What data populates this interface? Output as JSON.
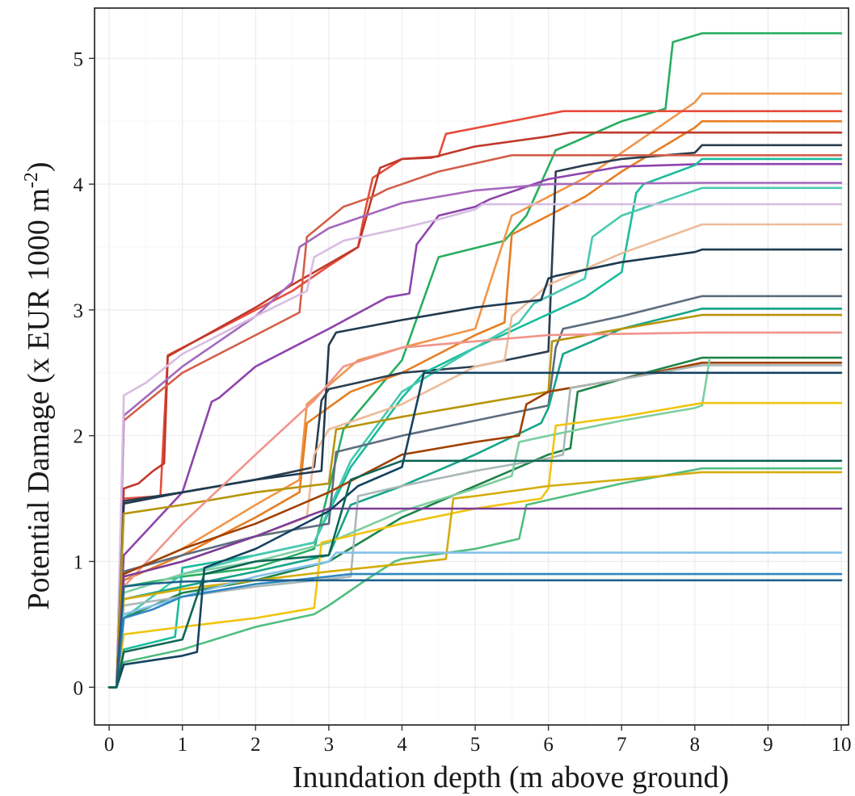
{
  "chart_data": {
    "type": "line",
    "xlabel": "Inundation depth (m above ground)",
    "ylabel": "Potential Damage (x EUR 1000  m",
    "ylabel_superscript": "-2",
    "ylabel_close": ")",
    "xlim": [
      -0.2,
      10.1
    ],
    "ylim": [
      -0.3,
      5.4
    ],
    "x_ticks": [
      0,
      1,
      2,
      3,
      4,
      5,
      6,
      7,
      8,
      9,
      10
    ],
    "x_tick_labels": [
      "0",
      "1",
      "2",
      "3",
      "4",
      "5",
      "6",
      "7",
      "8",
      "9",
      "10"
    ],
    "y_ticks": [
      0,
      1,
      2,
      3,
      4,
      5
    ],
    "y_tick_labels": [
      "0",
      "1",
      "2",
      "3",
      "4",
      "5"
    ],
    "grid": true,
    "legend": "none",
    "series": [
      {
        "color": "#27ae60",
        "x": [
          0,
          0.1,
          0.2,
          0.5,
          1.0,
          2.0,
          2.8,
          3.2,
          4.0,
          4.5,
          5.4,
          5.7,
          6.1,
          7.0,
          7.6,
          7.7,
          8.1,
          10
        ],
        "y": [
          0,
          0,
          0.8,
          0.83,
          0.88,
          0.95,
          1.1,
          2.05,
          2.6,
          3.42,
          3.55,
          3.75,
          4.27,
          4.5,
          4.6,
          5.13,
          5.2,
          5.2
        ]
      },
      {
        "color": "#f0954a",
        "x": [
          0,
          0.1,
          0.2,
          1.0,
          2.0,
          2.6,
          2.7,
          3.4,
          4.0,
          5.0,
          5.5,
          6.0,
          6.5,
          7.0,
          8.0,
          8.1,
          10
        ],
        "y": [
          0,
          0,
          0.9,
          1.1,
          1.45,
          1.65,
          2.25,
          2.6,
          2.7,
          2.85,
          3.75,
          3.9,
          4.05,
          4.25,
          4.65,
          4.72,
          4.72
        ]
      },
      {
        "color": "#e74c3c",
        "x": [
          0,
          0.1,
          0.2,
          0.7,
          0.8,
          1.5,
          2.5,
          3.0,
          3.4,
          3.5,
          3.6,
          4.0,
          4.5,
          4.6,
          6.2,
          8.1,
          10
        ],
        "y": [
          0,
          0,
          1.5,
          1.52,
          2.64,
          2.85,
          3.15,
          3.35,
          3.5,
          3.8,
          4.05,
          4.2,
          4.22,
          4.4,
          4.58,
          4.58,
          4.58
        ]
      },
      {
        "color": "#e67e22",
        "x": [
          0,
          0.1,
          0.2,
          1.0,
          2.0,
          2.6,
          2.7,
          3.3,
          4.0,
          5.0,
          5.4,
          5.5,
          6.0,
          6.5,
          7.0,
          8.0,
          8.1,
          10
        ],
        "y": [
          0,
          0,
          0.85,
          1.05,
          1.35,
          1.55,
          2.1,
          2.35,
          2.5,
          2.8,
          2.9,
          3.6,
          3.75,
          3.9,
          4.1,
          4.45,
          4.5,
          4.5
        ]
      },
      {
        "color": "#c0392b",
        "x": [
          0,
          0.1,
          0.2,
          0.4,
          0.6,
          0.75,
          0.8,
          2.0,
          2.5,
          3.4,
          3.7,
          4.0,
          4.4,
          5.0,
          6.0,
          6.3,
          8.1,
          10
        ],
        "y": [
          0,
          0,
          1.58,
          1.62,
          1.72,
          1.78,
          2.63,
          3.02,
          3.2,
          3.5,
          4.13,
          4.2,
          4.21,
          4.3,
          4.38,
          4.41,
          4.41,
          4.41
        ]
      },
      {
        "color": "#2c3e50",
        "x": [
          0,
          0.1,
          0.2,
          1.0,
          2.0,
          2.8,
          2.9,
          3.0,
          4.0,
          5.0,
          6.0,
          6.1,
          6.5,
          7.0,
          8.0,
          8.1,
          10
        ],
        "y": [
          0,
          0,
          1.48,
          1.55,
          1.65,
          1.75,
          2.28,
          2.37,
          2.5,
          2.55,
          2.67,
          4.1,
          4.15,
          4.2,
          4.25,
          4.31,
          4.31
        ]
      },
      {
        "color": "#d35f4a",
        "x": [
          0,
          0.1,
          0.2,
          1.0,
          2.0,
          2.6,
          2.7,
          3.2,
          3.6,
          3.8,
          4.5,
          5.5,
          8.1,
          10
        ],
        "y": [
          0,
          0,
          2.12,
          2.5,
          2.8,
          2.98,
          3.58,
          3.82,
          3.9,
          3.96,
          4.1,
          4.23,
          4.23,
          4.23
        ]
      },
      {
        "color": "#8e44ad",
        "x": [
          0,
          0.1,
          0.2,
          0.6,
          1.0,
          1.4,
          1.5,
          2.0,
          3.0,
          3.8,
          4.1,
          4.2,
          4.5,
          5.0,
          5.2,
          6.0,
          7.0,
          8.1,
          10
        ],
        "y": [
          0,
          0,
          1.05,
          1.3,
          1.55,
          2.27,
          2.3,
          2.55,
          2.85,
          3.1,
          3.13,
          3.52,
          3.75,
          3.82,
          3.88,
          4.04,
          4.14,
          4.16,
          4.16
        ]
      },
      {
        "color": "#1abc9c",
        "x": [
          0,
          0.1,
          0.2,
          0.9,
          1.0,
          2.0,
          2.8,
          3.3,
          4.0,
          4.3,
          5.0,
          6.5,
          7.0,
          7.2,
          7.3,
          8.0,
          8.1,
          10
        ],
        "y": [
          0,
          0,
          0.3,
          0.4,
          0.95,
          1.05,
          1.15,
          1.75,
          2.3,
          2.5,
          2.7,
          3.1,
          3.3,
          3.93,
          4.0,
          4.15,
          4.2,
          4.2
        ]
      },
      {
        "color": "#a569bd",
        "x": [
          0,
          0.1,
          0.2,
          1.0,
          2.0,
          2.5,
          2.6,
          3.0,
          4.0,
          5.0,
          6.0,
          8.1,
          10
        ],
        "y": [
          0,
          0,
          2.16,
          2.55,
          2.95,
          3.22,
          3.5,
          3.65,
          3.85,
          3.95,
          4.0,
          4.01,
          4.01
        ]
      },
      {
        "color": "#48c9b0",
        "x": [
          0,
          0.1,
          0.2,
          1.0,
          2.0,
          2.8,
          3.3,
          4.0,
          5.0,
          5.6,
          5.8,
          6.5,
          6.6,
          7.0,
          8.1,
          10
        ],
        "y": [
          0,
          0,
          0.55,
          0.9,
          1.05,
          1.15,
          1.8,
          2.35,
          2.7,
          2.9,
          3.05,
          3.25,
          3.58,
          3.75,
          3.97,
          3.97
        ]
      },
      {
        "color": "#d7bde2",
        "x": [
          0,
          0.1,
          0.2,
          0.5,
          1.0,
          2.0,
          2.7,
          2.8,
          3.2,
          4.0,
          4.5,
          5.0,
          5.1,
          8.1,
          10
        ],
        "y": [
          0,
          0,
          2.32,
          2.42,
          2.65,
          2.95,
          3.15,
          3.42,
          3.55,
          3.65,
          3.72,
          3.8,
          3.84,
          3.84,
          3.84
        ]
      },
      {
        "color": "#edbb99",
        "x": [
          0,
          0.1,
          0.2,
          1.0,
          2.0,
          2.7,
          2.8,
          3.0,
          4.0,
          5.0,
          5.4,
          5.5,
          6.0,
          7.0,
          8.1,
          10
        ],
        "y": [
          0,
          0,
          0.88,
          1.0,
          1.2,
          1.35,
          1.85,
          2.05,
          2.25,
          2.55,
          2.6,
          2.95,
          3.2,
          3.45,
          3.68,
          3.68
        ]
      },
      {
        "color": "#1f3a4f",
        "x": [
          0,
          0.1,
          0.2,
          1.0,
          2.0,
          2.9,
          3.0,
          3.1,
          4.0,
          5.0,
          5.9,
          6.0,
          6.1,
          7.0,
          8.0,
          8.1,
          10
        ],
        "y": [
          0,
          0,
          1.46,
          1.55,
          1.65,
          1.72,
          2.72,
          2.82,
          2.92,
          3.02,
          3.08,
          3.25,
          3.27,
          3.38,
          3.46,
          3.48,
          3.48
        ]
      },
      {
        "color": "#5d6d7e",
        "x": [
          0,
          0.1,
          0.2,
          1.0,
          2.0,
          3.0,
          3.1,
          4.0,
          5.0,
          6.0,
          6.1,
          6.2,
          7.0,
          8.1,
          10
        ],
        "y": [
          0,
          0,
          0.92,
          1.05,
          1.2,
          1.3,
          1.87,
          2.0,
          2.12,
          2.24,
          2.7,
          2.85,
          2.95,
          3.11,
          3.11
        ]
      },
      {
        "color": "#17a589",
        "x": [
          0,
          0.1,
          0.2,
          1.0,
          2.0,
          3.0,
          3.3,
          4.0,
          5.0,
          5.9,
          6.0,
          6.2,
          7.0,
          8.1,
          10
        ],
        "y": [
          0,
          0,
          0.7,
          0.8,
          0.92,
          1.05,
          1.45,
          1.6,
          1.85,
          2.1,
          2.22,
          2.65,
          2.85,
          3.01,
          3.01
        ]
      },
      {
        "color": "#b7950b",
        "x": [
          0,
          0.1,
          0.2,
          1.0,
          2.0,
          3.0,
          3.1,
          4.0,
          5.0,
          6.0,
          6.05,
          7.0,
          8.1,
          10
        ],
        "y": [
          0,
          0,
          1.38,
          1.45,
          1.55,
          1.62,
          2.05,
          2.15,
          2.25,
          2.35,
          2.75,
          2.85,
          2.96,
          2.96
        ]
      },
      {
        "color": "#f1948a",
        "x": [
          0,
          0.1,
          0.2,
          1.0,
          2.0,
          2.8,
          3.2,
          4.0,
          5.0,
          6.0,
          8.1,
          10
        ],
        "y": [
          0,
          0,
          0.8,
          1.3,
          1.85,
          2.28,
          2.55,
          2.7,
          2.75,
          2.8,
          2.82,
          2.82
        ]
      },
      {
        "color": "#1e8449",
        "x": [
          0,
          0.1,
          0.2,
          1.0,
          2.0,
          3.0,
          4.0,
          5.0,
          6.0,
          6.3,
          6.4,
          7.0,
          8.1,
          10
        ],
        "y": [
          0,
          0,
          0.55,
          0.75,
          0.85,
          1.0,
          1.35,
          1.6,
          1.85,
          1.9,
          2.35,
          2.45,
          2.62,
          2.62
        ]
      },
      {
        "color": "#a04000",
        "x": [
          0,
          0.1,
          0.2,
          1.0,
          2.0,
          3.0,
          4.0,
          5.0,
          5.6,
          5.7,
          6.0,
          7.0,
          8.1,
          10
        ],
        "y": [
          0,
          0,
          0.9,
          1.1,
          1.3,
          1.55,
          1.85,
          1.95,
          2.0,
          2.25,
          2.35,
          2.45,
          2.58,
          2.58
        ]
      },
      {
        "color": "#aab7b8",
        "x": [
          0,
          0.1,
          0.2,
          1.0,
          2.0,
          3.0,
          3.3,
          3.4,
          4.0,
          5.0,
          6.0,
          6.2,
          6.3,
          7.0,
          8.1,
          10
        ],
        "y": [
          0,
          0,
          0.65,
          0.72,
          0.8,
          0.86,
          0.88,
          1.52,
          1.6,
          1.72,
          1.82,
          1.85,
          2.38,
          2.45,
          2.56,
          2.56
        ]
      },
      {
        "color": "#7dcea0",
        "x": [
          0,
          0.1,
          0.2,
          1.0,
          2.0,
          3.0,
          4.0,
          5.0,
          5.5,
          5.6,
          6.0,
          7.0,
          8.0,
          8.1,
          8.2
        ],
        "y": [
          0,
          0,
          0.75,
          0.9,
          1.0,
          1.15,
          1.4,
          1.58,
          1.68,
          1.95,
          2.0,
          2.12,
          2.22,
          2.24,
          2.6
        ]
      },
      {
        "color": "#f1c40f",
        "x": [
          0,
          0.1,
          0.2,
          1.0,
          2.0,
          2.5,
          2.8,
          2.9,
          4.0,
          5.0,
          5.9,
          6.0,
          6.1,
          7.0,
          8.1,
          10
        ],
        "y": [
          0,
          0,
          0.42,
          0.48,
          0.55,
          0.6,
          0.63,
          1.15,
          1.3,
          1.42,
          1.5,
          1.58,
          2.08,
          2.15,
          2.26,
          2.26
        ]
      },
      {
        "color": "#52be80",
        "x": [
          0,
          0.1,
          0.2,
          1.0,
          2.0,
          2.8,
          3.0,
          3.5,
          3.9,
          4.0,
          5.0,
          5.6,
          5.7,
          7.0,
          8.1,
          10
        ],
        "y": [
          0,
          0,
          0.2,
          0.3,
          0.48,
          0.58,
          0.65,
          0.85,
          1.0,
          1.02,
          1.1,
          1.18,
          1.45,
          1.62,
          1.74,
          1.74
        ]
      },
      {
        "color": "#d4ac0d",
        "x": [
          0,
          0.1,
          0.2,
          1.0,
          2.0,
          3.0,
          4.0,
          4.6,
          4.7,
          5.0,
          6.0,
          7.0,
          8.1,
          10
        ],
        "y": [
          0,
          0,
          0.7,
          0.78,
          0.85,
          0.92,
          0.98,
          1.02,
          1.5,
          1.52,
          1.6,
          1.65,
          1.71,
          1.71
        ]
      },
      {
        "color": "#7d3c98",
        "x": [
          0,
          0.1,
          0.2,
          1.0,
          2.0,
          2.8,
          3.0,
          8.1,
          10
        ],
        "y": [
          0,
          0,
          0.88,
          1.0,
          1.2,
          1.38,
          1.42,
          1.42,
          1.42
        ]
      },
      {
        "color": "#85c1e9",
        "x": [
          0,
          0.1,
          0.2,
          1.0,
          2.0,
          3.0,
          3.1,
          8.1,
          10
        ],
        "y": [
          0,
          0,
          0.58,
          0.72,
          0.88,
          1.0,
          1.07,
          1.07,
          1.07
        ]
      },
      {
        "color": "#2e86c1",
        "x": [
          0,
          0.1,
          0.2,
          0.6,
          1.0,
          2.0,
          3.0,
          3.3,
          8.1,
          10
        ],
        "y": [
          0,
          0,
          0.55,
          0.62,
          0.72,
          0.82,
          0.88,
          0.9,
          0.9,
          0.9
        ]
      },
      {
        "color": "#1f618d",
        "x": [
          0,
          0.1,
          0.2,
          0.5,
          1.0,
          2.0,
          8.1,
          10
        ],
        "y": [
          0,
          0,
          0.8,
          0.82,
          0.84,
          0.85,
          0.85,
          0.85
        ]
      },
      {
        "color": "#154360",
        "x": [
          0,
          0.1,
          0.2,
          1.0,
          1.2,
          1.3,
          2.0,
          3.0,
          3.4,
          4.0,
          4.3,
          8.1,
          10
        ],
        "y": [
          0,
          0,
          0.18,
          0.25,
          0.28,
          0.95,
          1.1,
          1.4,
          1.6,
          1.75,
          2.5,
          2.5,
          2.5
        ]
      },
      {
        "color": "#0e6655",
        "x": [
          0,
          0.1,
          0.2,
          1.0,
          1.3,
          2.0,
          3.0,
          3.3,
          4.0,
          8.1,
          10
        ],
        "y": [
          0,
          0,
          0.28,
          0.38,
          0.9,
          1.0,
          1.05,
          1.65,
          1.8,
          1.8,
          1.8
        ]
      }
    ]
  }
}
